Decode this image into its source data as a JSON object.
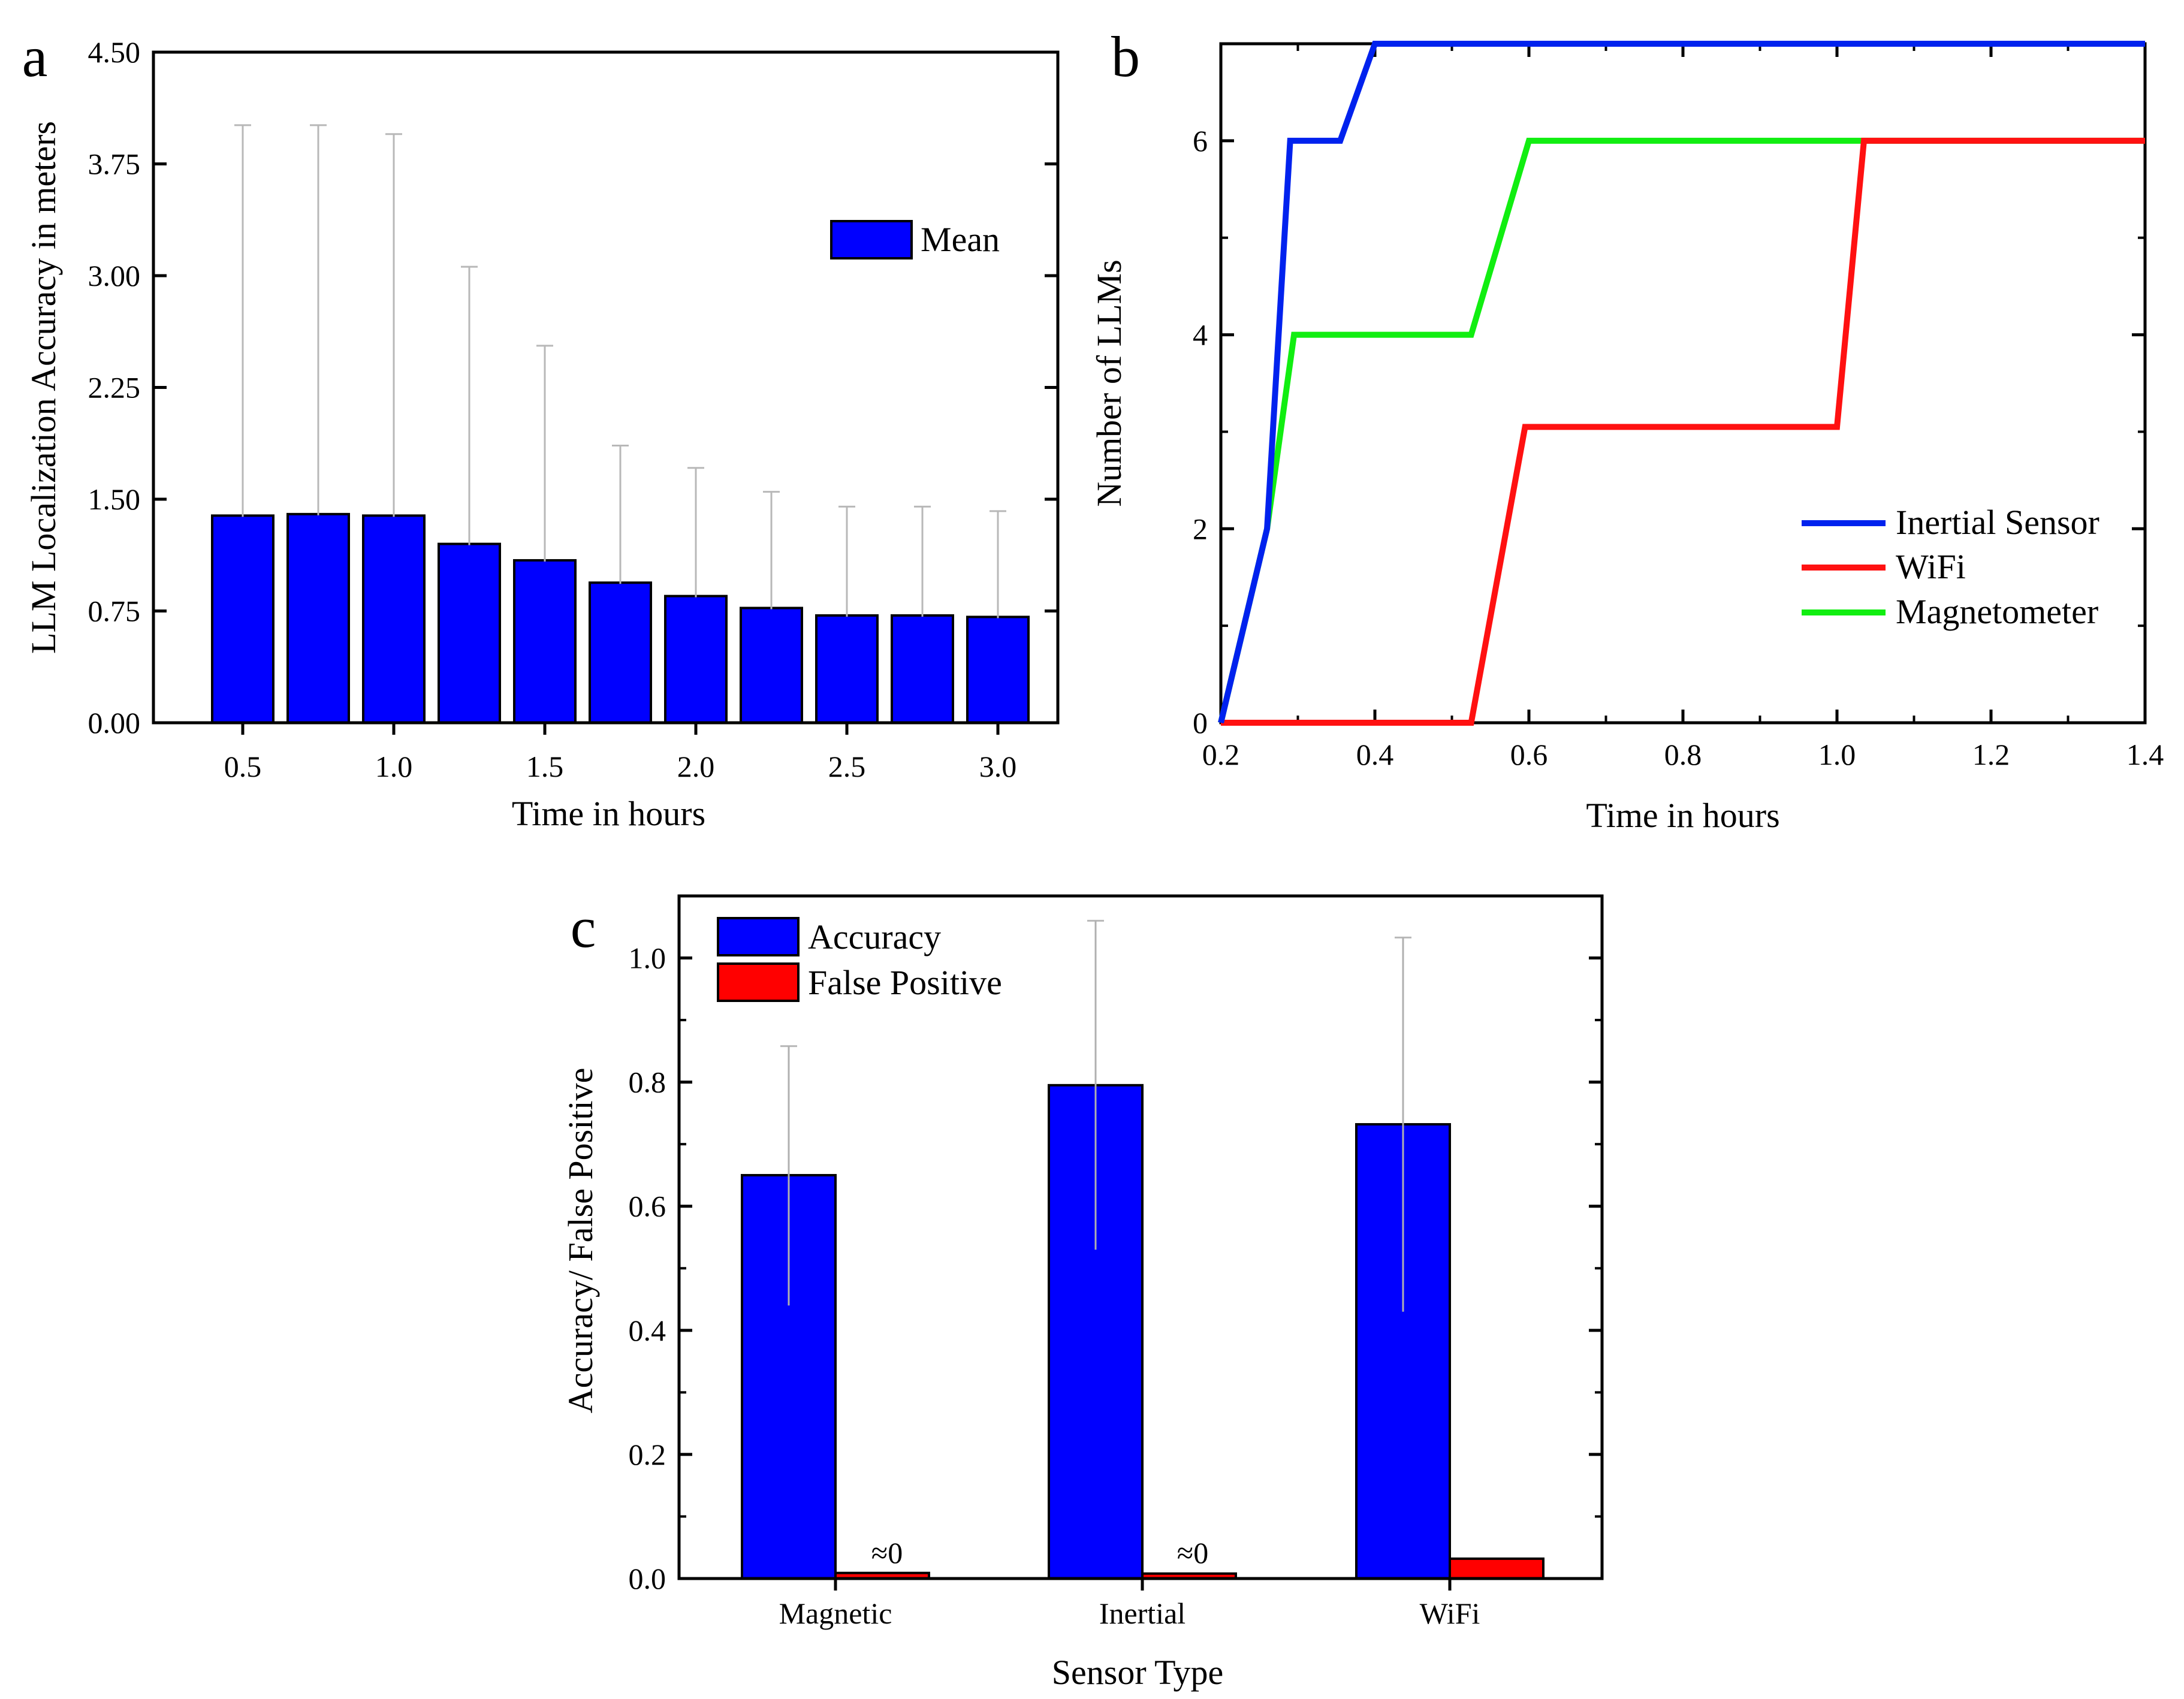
{
  "chart_data": [
    {
      "panel": "a",
      "type": "bar",
      "xlabel": "Time in hours",
      "ylabel": "LLM Localization Accuracy in meters",
      "ylim": [
        0,
        4.5
      ],
      "yticks": [
        "0.00",
        "0.75",
        "1.50",
        "2.25",
        "3.00",
        "3.75",
        "4.50"
      ],
      "xticks": [
        "0.5",
        "1.0",
        "1.5",
        "2.0",
        "2.5",
        "3.0"
      ],
      "x": [
        0.5,
        0.75,
        1.0,
        1.25,
        1.5,
        1.75,
        2.0,
        2.25,
        2.5,
        2.75,
        3.0
      ],
      "series": [
        {
          "name": "Mean",
          "color": "#0000ff",
          "values": [
            1.39,
            1.4,
            1.39,
            1.2,
            1.09,
            0.94,
            0.85,
            0.77,
            0.72,
            0.72,
            0.71
          ],
          "error_upper": [
            4.01,
            4.01,
            3.95,
            3.06,
            2.53,
            1.86,
            1.71,
            1.55,
            1.45,
            1.45,
            1.42
          ],
          "error_lower": [
            0.0,
            0.0,
            0.0,
            0.0,
            0.0,
            0.02,
            0.0,
            0.0,
            0.0,
            0.0,
            0.0
          ]
        }
      ],
      "legend": {
        "label": "Mean",
        "position": "top-right"
      }
    },
    {
      "panel": "b",
      "type": "line",
      "xlabel": "Time in hours",
      "ylabel": "Number of LLMs",
      "xlim": [
        0.2,
        1.4
      ],
      "ylim": [
        0,
        7
      ],
      "xticks": [
        "0.2",
        "0.4",
        "0.6",
        "0.8",
        "1.0",
        "1.2",
        "1.4"
      ],
      "yticks": [
        "0",
        "2",
        "4",
        "6"
      ],
      "series": [
        {
          "name": "Inertial Sensor",
          "color": "#0022ee",
          "x": [
            0.2,
            0.26,
            0.29,
            0.355,
            0.4,
            1.4
          ],
          "y": [
            0,
            2,
            6,
            6,
            7,
            7
          ]
        },
        {
          "name": "WiFi",
          "color": "#ff1111",
          "x": [
            0.2,
            0.525,
            0.595,
            1.0,
            1.035,
            1.4
          ],
          "y": [
            0,
            0,
            3.05,
            3.05,
            6,
            6
          ]
        },
        {
          "name": "Magnetometer",
          "color": "#11ee11",
          "x": [
            0.2,
            0.26,
            0.295,
            0.525,
            0.6,
            1.4
          ],
          "y": [
            0,
            2,
            4,
            4,
            6,
            6
          ]
        }
      ],
      "legend": {
        "position": "bottom-right"
      }
    },
    {
      "panel": "c",
      "type": "bar",
      "xlabel": "Sensor Type",
      "ylabel": "Accuracy/ False Positive",
      "ylim": [
        0,
        1.1
      ],
      "yticks": [
        "0.0",
        "0.2",
        "0.4",
        "0.6",
        "0.8",
        "1.0"
      ],
      "categories": [
        "Magnetic",
        "Inertial",
        "WiFi"
      ],
      "series": [
        {
          "name": "Accuracy",
          "color": "#0000ff",
          "values": [
            0.65,
            0.795,
            0.732
          ],
          "error_upper": [
            0.858,
            1.06,
            1.033
          ],
          "error_lower": [
            0.44,
            0.53,
            0.43
          ]
        },
        {
          "name": "False Positive",
          "color": "#ff0000",
          "values": [
            0.009,
            0.008,
            0.032
          ]
        }
      ],
      "annotations": [
        "≈0",
        "≈0"
      ],
      "legend": {
        "position": "top-left"
      }
    }
  ]
}
